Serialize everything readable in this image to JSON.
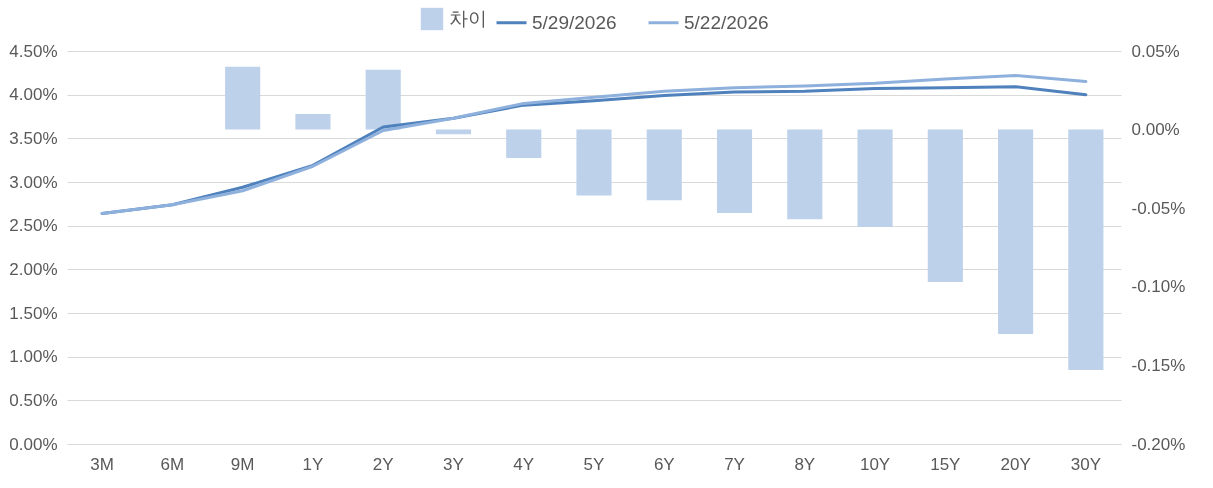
{
  "chart_data": {
    "type": "line",
    "categories": [
      "3M",
      "6M",
      "9M",
      "1Y",
      "2Y",
      "3Y",
      "4Y",
      "5Y",
      "6Y",
      "7Y",
      "8Y",
      "10Y",
      "15Y",
      "20Y",
      "30Y"
    ],
    "series": [
      {
        "name": "차이",
        "type": "bar",
        "axis": "y2",
        "color": "#bdd1ea",
        "values": [
          0,
          0,
          0.04,
          0.01,
          0.038,
          -0.003,
          -0.018,
          -0.042,
          -0.045,
          -0.053,
          -0.057,
          -0.062,
          -0.097,
          -0.13,
          -0.153
        ]
      },
      {
        "name": "5/29/2026",
        "color": "#4f81bd",
        "values": [
          2.64,
          2.74,
          2.94,
          3.19,
          3.63,
          3.73,
          3.88,
          3.93,
          3.99,
          4.03,
          4.04,
          4.07,
          4.08,
          4.09,
          4.0
        ]
      },
      {
        "name": "5/22/2026",
        "color": "#8eb0dc",
        "values": [
          2.64,
          2.74,
          2.9,
          3.18,
          3.59,
          3.73,
          3.9,
          3.97,
          4.04,
          4.08,
          4.1,
          4.13,
          4.18,
          4.22,
          4.15
        ]
      }
    ],
    "ylim": [
      0,
      4.5
    ],
    "yticks": [
      {
        "value": 0,
        "label": "0.00%"
      },
      {
        "value": 0.5,
        "label": "0.50%"
      },
      {
        "value": 1,
        "label": "1.00%"
      },
      {
        "value": 1.5,
        "label": "1.50%"
      },
      {
        "value": 2,
        "label": "2.00%"
      },
      {
        "value": 2.5,
        "label": "2.50%"
      },
      {
        "value": 3,
        "label": "3.00%"
      },
      {
        "value": 3.5,
        "label": "3.50%"
      },
      {
        "value": 4,
        "label": "4.00%"
      },
      {
        "value": 4.5,
        "label": "4.50%"
      }
    ],
    "y2lim": [
      -0.2,
      0.05
    ],
    "y2ticks": [
      {
        "value": -0.2,
        "label": "-0.20%"
      },
      {
        "value": -0.15,
        "label": "-0.15%"
      },
      {
        "value": -0.1,
        "label": "-0.10%"
      },
      {
        "value": -0.05,
        "label": "-0.05%"
      },
      {
        "value": 0,
        "label": "0.00%"
      },
      {
        "value": 0.05,
        "label": "0.05%"
      }
    ],
    "grid": "y",
    "legend": "top",
    "line_style": "solid",
    "marker": "none"
  }
}
